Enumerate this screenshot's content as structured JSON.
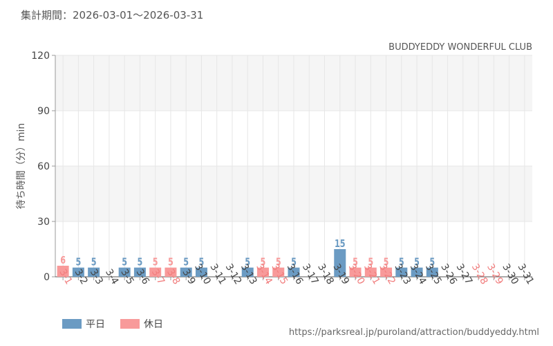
{
  "header": {
    "period": "集計期間：2026-03-01～2026-03-31",
    "source": "https://parksreal.jp/puroland/attraction/buddyeddy.html"
  },
  "colors": {
    "weekday": "#6b9bc3",
    "holiday": "#f89a9a",
    "grid": "#e6e6e6",
    "band": "#f5f5f5",
    "axis": "#999999"
  },
  "chart_data": {
    "type": "bar",
    "title": "BUDDYEDDY WONDERFUL CLUB",
    "ylabel": "待ち時間（分）min",
    "xlabel": "",
    "ylim": [
      0,
      120
    ],
    "yticks": [
      0,
      30,
      60,
      90,
      120
    ],
    "grid": true,
    "legend_position": "bottom-left",
    "categories": [
      "3-1",
      "3-2",
      "3-3",
      "3-4",
      "3-5",
      "3-6",
      "3-7",
      "3-8",
      "3-9",
      "3-10",
      "3-11",
      "3-12",
      "3-13",
      "3-14",
      "3-15",
      "3-16",
      "3-17",
      "3-18",
      "3-19",
      "3-20",
      "3-21",
      "3-22",
      "3-23",
      "3-24",
      "3-25",
      "3-26",
      "3-27",
      "3-28",
      "3-29",
      "3-30",
      "3-31"
    ],
    "values": [
      6,
      5,
      5,
      null,
      5,
      5,
      5,
      5,
      5,
      5,
      null,
      null,
      5,
      5,
      5,
      5,
      null,
      null,
      15,
      5,
      5,
      5,
      5,
      5,
      5,
      null,
      null,
      null,
      null,
      null,
      null
    ],
    "day_type": [
      "holiday",
      "weekday",
      "weekday",
      "weekday",
      "weekday",
      "weekday",
      "holiday",
      "holiday",
      "weekday",
      "weekday",
      "weekday",
      "weekday",
      "weekday",
      "holiday",
      "holiday",
      "weekday",
      "weekday",
      "weekday",
      "weekday",
      "holiday",
      "holiday",
      "holiday",
      "weekday",
      "weekday",
      "weekday",
      "weekday",
      "weekday",
      "holiday",
      "holiday",
      "weekday",
      "weekday"
    ],
    "series": [
      {
        "name": "平日",
        "color": "#6b9bc3"
      },
      {
        "name": "休日",
        "color": "#f89a9a"
      }
    ]
  }
}
